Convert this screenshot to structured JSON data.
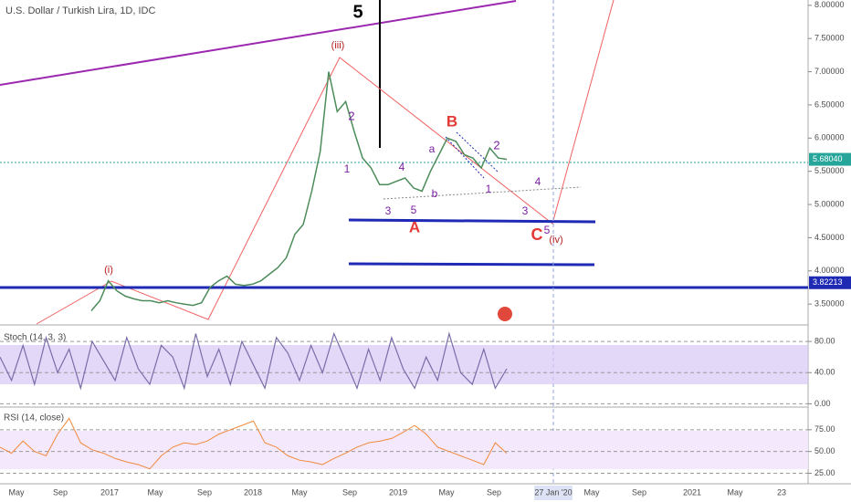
{
  "chart_data": {
    "type": "line",
    "title": "U.S. Dollar / Turkish Lira, 1D, IDC",
    "values": [
      3.4,
      3.55,
      3.85,
      3.7,
      3.62,
      3.58,
      3.55,
      3.55,
      3.52,
      3.55,
      3.52,
      3.5,
      3.48,
      3.52,
      3.75,
      3.85,
      3.92,
      3.8,
      3.78,
      3.8,
      3.85,
      3.95,
      4.05,
      4.2,
      4.55,
      4.7,
      5.2,
      5.8,
      7.0,
      6.4,
      6.55,
      6.1,
      5.7,
      5.55,
      5.3,
      5.3,
      5.35,
      5.4,
      5.25,
      5.2,
      5.5,
      5.75,
      6.0,
      5.95,
      5.75,
      5.7,
      5.55,
      5.85,
      5.7,
      5.68
    ],
    "color": "#4c8c5a",
    "ylim": [
      3.2,
      8.08
    ],
    "yticks": [
      {
        "value": 3.5,
        "label": "3.50000"
      },
      {
        "value": 4,
        "label": "4.00000"
      },
      {
        "value": 4.5,
        "label": "4.50000"
      },
      {
        "value": 5,
        "label": "5.00000"
      },
      {
        "value": 5.5,
        "label": "5.50000"
      },
      {
        "value": 6,
        "label": "6.00000"
      },
      {
        "value": 6.5,
        "label": "6.50000"
      },
      {
        "value": 7,
        "label": "7.00000"
      },
      {
        "value": 7.5,
        "label": "7.50000"
      },
      {
        "value": 8,
        "label": "8.00000"
      }
    ],
    "price_labels": [
      {
        "value": 5.6804,
        "label": "5.68040",
        "color": "#26a69a"
      },
      {
        "value": 3.82213,
        "label": "3.82213",
        "color": "#1e2ab4"
      }
    ],
    "annotations": [
      "5",
      "(iii)",
      "2",
      "1",
      "3",
      "4",
      "5",
      "A",
      "a",
      "b",
      "B",
      "2",
      "1",
      "4",
      "3",
      "C",
      "5",
      "(iv)",
      "(i)"
    ],
    "xtick_labels": [
      "May",
      "Sep",
      "2017",
      "May",
      "Sep",
      "2018",
      "May",
      "Sep",
      "2019",
      "May",
      "Sep",
      "27 Jan '20",
      "May",
      "Sep",
      "2021",
      "May",
      "23"
    ],
    "stoch": {
      "title": "Stoch (14, 3, 3)",
      "color": "#7b6ca8",
      "ylim": [
        -3,
        100
      ],
      "values": [
        60,
        30,
        75,
        25,
        85,
        40,
        70,
        20,
        80,
        55,
        30,
        85,
        45,
        25,
        75,
        60,
        20,
        90,
        35,
        70,
        25,
        80,
        50,
        20,
        85,
        65,
        30,
        75,
        40,
        90,
        55,
        20,
        70,
        30,
        85,
        45,
        20,
        60,
        30,
        90,
        40,
        25,
        70,
        20,
        45
      ],
      "yticks": [
        {
          "value": 80,
          "label": "80.00"
        },
        {
          "value": 40,
          "label": "40.00"
        },
        {
          "value": 0,
          "label": "0.00"
        }
      ]
    },
    "rsi": {
      "title": "RSI (14, close)",
      "color": "#f08a3c",
      "ylim": [
        14,
        100
      ],
      "values": [
        55,
        48,
        62,
        50,
        45,
        70,
        88,
        60,
        52,
        48,
        42,
        38,
        35,
        30,
        45,
        55,
        60,
        58,
        62,
        70,
        75,
        80,
        85,
        60,
        55,
        45,
        40,
        38,
        35,
        42,
        48,
        55,
        60,
        62,
        65,
        72,
        80,
        70,
        55,
        50,
        45,
        40,
        35,
        60,
        48
      ],
      "yticks": [
        {
          "value": 75,
          "label": "75.00"
        },
        {
          "value": 50,
          "label": "50.00"
        },
        {
          "value": 25,
          "label": "25.00"
        }
      ]
    }
  }
}
